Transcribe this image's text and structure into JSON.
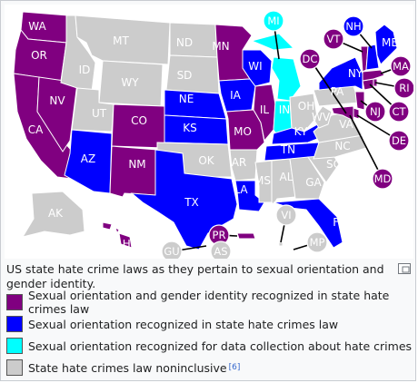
{
  "caption": "US state hate crime laws as they pertain to sexual orientation and gender identity.",
  "colors": {
    "purple": "#800080",
    "blue": "#0000ff",
    "cyan": "#00ffff",
    "gray": "#cccccc",
    "label_dark": "#ffffff",
    "label_light": "#ffffff"
  },
  "legend": [
    {
      "key": "purple",
      "label": "Sexual orientation and gender identity recognized in state hate crimes law"
    },
    {
      "key": "blue",
      "label": "Sexual orientation recognized in state hate crimes law"
    },
    {
      "key": "cyan",
      "label": "Sexual orientation recognized for data collection about hate crimes"
    },
    {
      "key": "gray",
      "label": "State hate crimes law noninclusive",
      "ref": "[6]"
    }
  ],
  "states": [
    {
      "abbr": "WA",
      "category": "purple"
    },
    {
      "abbr": "OR",
      "category": "purple"
    },
    {
      "abbr": "CA",
      "category": "purple"
    },
    {
      "abbr": "NV",
      "category": "purple"
    },
    {
      "abbr": "ID",
      "category": "gray"
    },
    {
      "abbr": "MT",
      "category": "gray"
    },
    {
      "abbr": "WY",
      "category": "gray"
    },
    {
      "abbr": "UT",
      "category": "gray"
    },
    {
      "abbr": "AZ",
      "category": "blue"
    },
    {
      "abbr": "CO",
      "category": "purple"
    },
    {
      "abbr": "NM",
      "category": "purple"
    },
    {
      "abbr": "ND",
      "category": "gray"
    },
    {
      "abbr": "SD",
      "category": "gray"
    },
    {
      "abbr": "NE",
      "category": "blue"
    },
    {
      "abbr": "KS",
      "category": "blue"
    },
    {
      "abbr": "OK",
      "category": "gray"
    },
    {
      "abbr": "TX",
      "category": "blue"
    },
    {
      "abbr": "MN",
      "category": "purple"
    },
    {
      "abbr": "IA",
      "category": "blue"
    },
    {
      "abbr": "MO",
      "category": "purple"
    },
    {
      "abbr": "AR",
      "category": "gray"
    },
    {
      "abbr": "LA",
      "category": "blue"
    },
    {
      "abbr": "WI",
      "category": "blue"
    },
    {
      "abbr": "IL",
      "category": "purple"
    },
    {
      "abbr": "MI",
      "category": "cyan"
    },
    {
      "abbr": "IN",
      "category": "cyan"
    },
    {
      "abbr": "OH",
      "category": "gray"
    },
    {
      "abbr": "KY",
      "category": "blue"
    },
    {
      "abbr": "TN",
      "category": "blue"
    },
    {
      "abbr": "MS",
      "category": "gray"
    },
    {
      "abbr": "AL",
      "category": "gray"
    },
    {
      "abbr": "GA",
      "category": "gray"
    },
    {
      "abbr": "FL",
      "category": "blue"
    },
    {
      "abbr": "SC",
      "category": "gray"
    },
    {
      "abbr": "NC",
      "category": "gray"
    },
    {
      "abbr": "VA",
      "category": "gray"
    },
    {
      "abbr": "WV",
      "category": "gray"
    },
    {
      "abbr": "PA",
      "category": "gray"
    },
    {
      "abbr": "NY",
      "category": "blue"
    },
    {
      "abbr": "NJ",
      "category": "purple"
    },
    {
      "abbr": "DE",
      "category": "purple"
    },
    {
      "abbr": "MD",
      "category": "purple"
    },
    {
      "abbr": "DC",
      "category": "purple"
    },
    {
      "abbr": "CT",
      "category": "purple"
    },
    {
      "abbr": "RI",
      "category": "purple"
    },
    {
      "abbr": "MA",
      "category": "purple"
    },
    {
      "abbr": "VT",
      "category": "purple"
    },
    {
      "abbr": "NH",
      "category": "blue"
    },
    {
      "abbr": "ME",
      "category": "blue"
    },
    {
      "abbr": "AK",
      "category": "gray"
    },
    {
      "abbr": "HI",
      "category": "purple"
    },
    {
      "abbr": "PR",
      "category": "purple"
    },
    {
      "abbr": "GU",
      "category": "gray"
    },
    {
      "abbr": "AS",
      "category": "gray"
    },
    {
      "abbr": "VI",
      "category": "gray"
    },
    {
      "abbr": "MP",
      "category": "gray"
    }
  ]
}
